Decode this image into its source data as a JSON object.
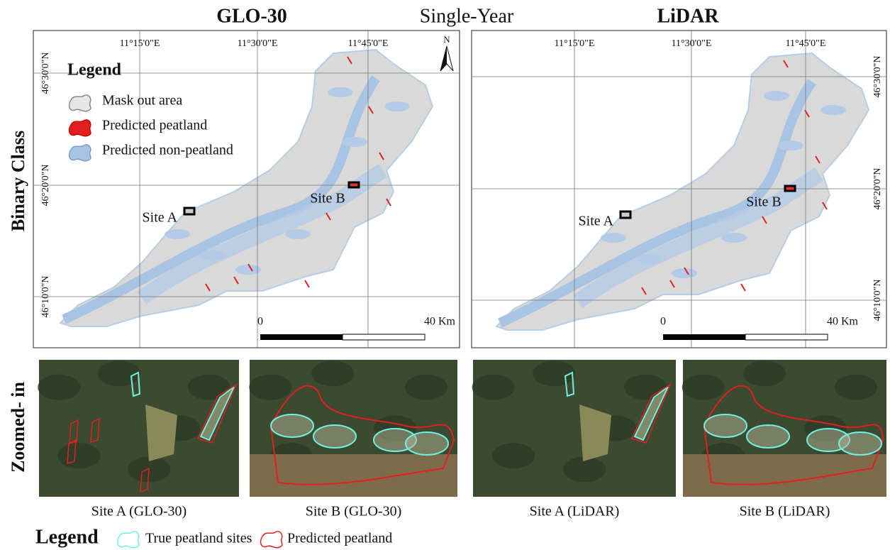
{
  "header": {
    "left_title": "GLO-30",
    "center_title": "Single-Year",
    "right_title": "LiDAR"
  },
  "row_labels": [
    "Binary Class",
    "Zoomed- in"
  ],
  "maps": [
    {
      "lon_labels": [
        "11°15'0\"E",
        "11°30'0\"E",
        "11°45'0\"E"
      ],
      "lat_labels": [
        "46°30'0\"N",
        "46°20'0\"N",
        "46°10'0\"N"
      ],
      "north": "N",
      "site_a": "Site A",
      "site_b": "Site B",
      "scale_start": "0",
      "scale_end": "40 Km"
    },
    {
      "lon_labels": [
        "11°15'0\"E",
        "11°30'0\"E",
        "11°45'0\"E"
      ],
      "lat_labels": [
        "46°30'0\"N",
        "46°20'0\"N",
        "46°10'0\"N"
      ],
      "site_a": "Site A",
      "site_b": "Site B",
      "scale_start": "0",
      "scale_end": "40 Km"
    }
  ],
  "map_legend": {
    "title": "Legend",
    "items": [
      "Mask out area",
      "Predicted peatland",
      "Predicted non-peatland"
    ]
  },
  "zoom_captions": [
    "Site A (GLO-30)",
    "Site B (GLO-30)",
    "Site A (LiDAR)",
    "Site B (LiDAR)"
  ],
  "bottom_legend": {
    "title": "Legend",
    "items": [
      "True peatland sites",
      "Predicted peatland"
    ]
  }
}
